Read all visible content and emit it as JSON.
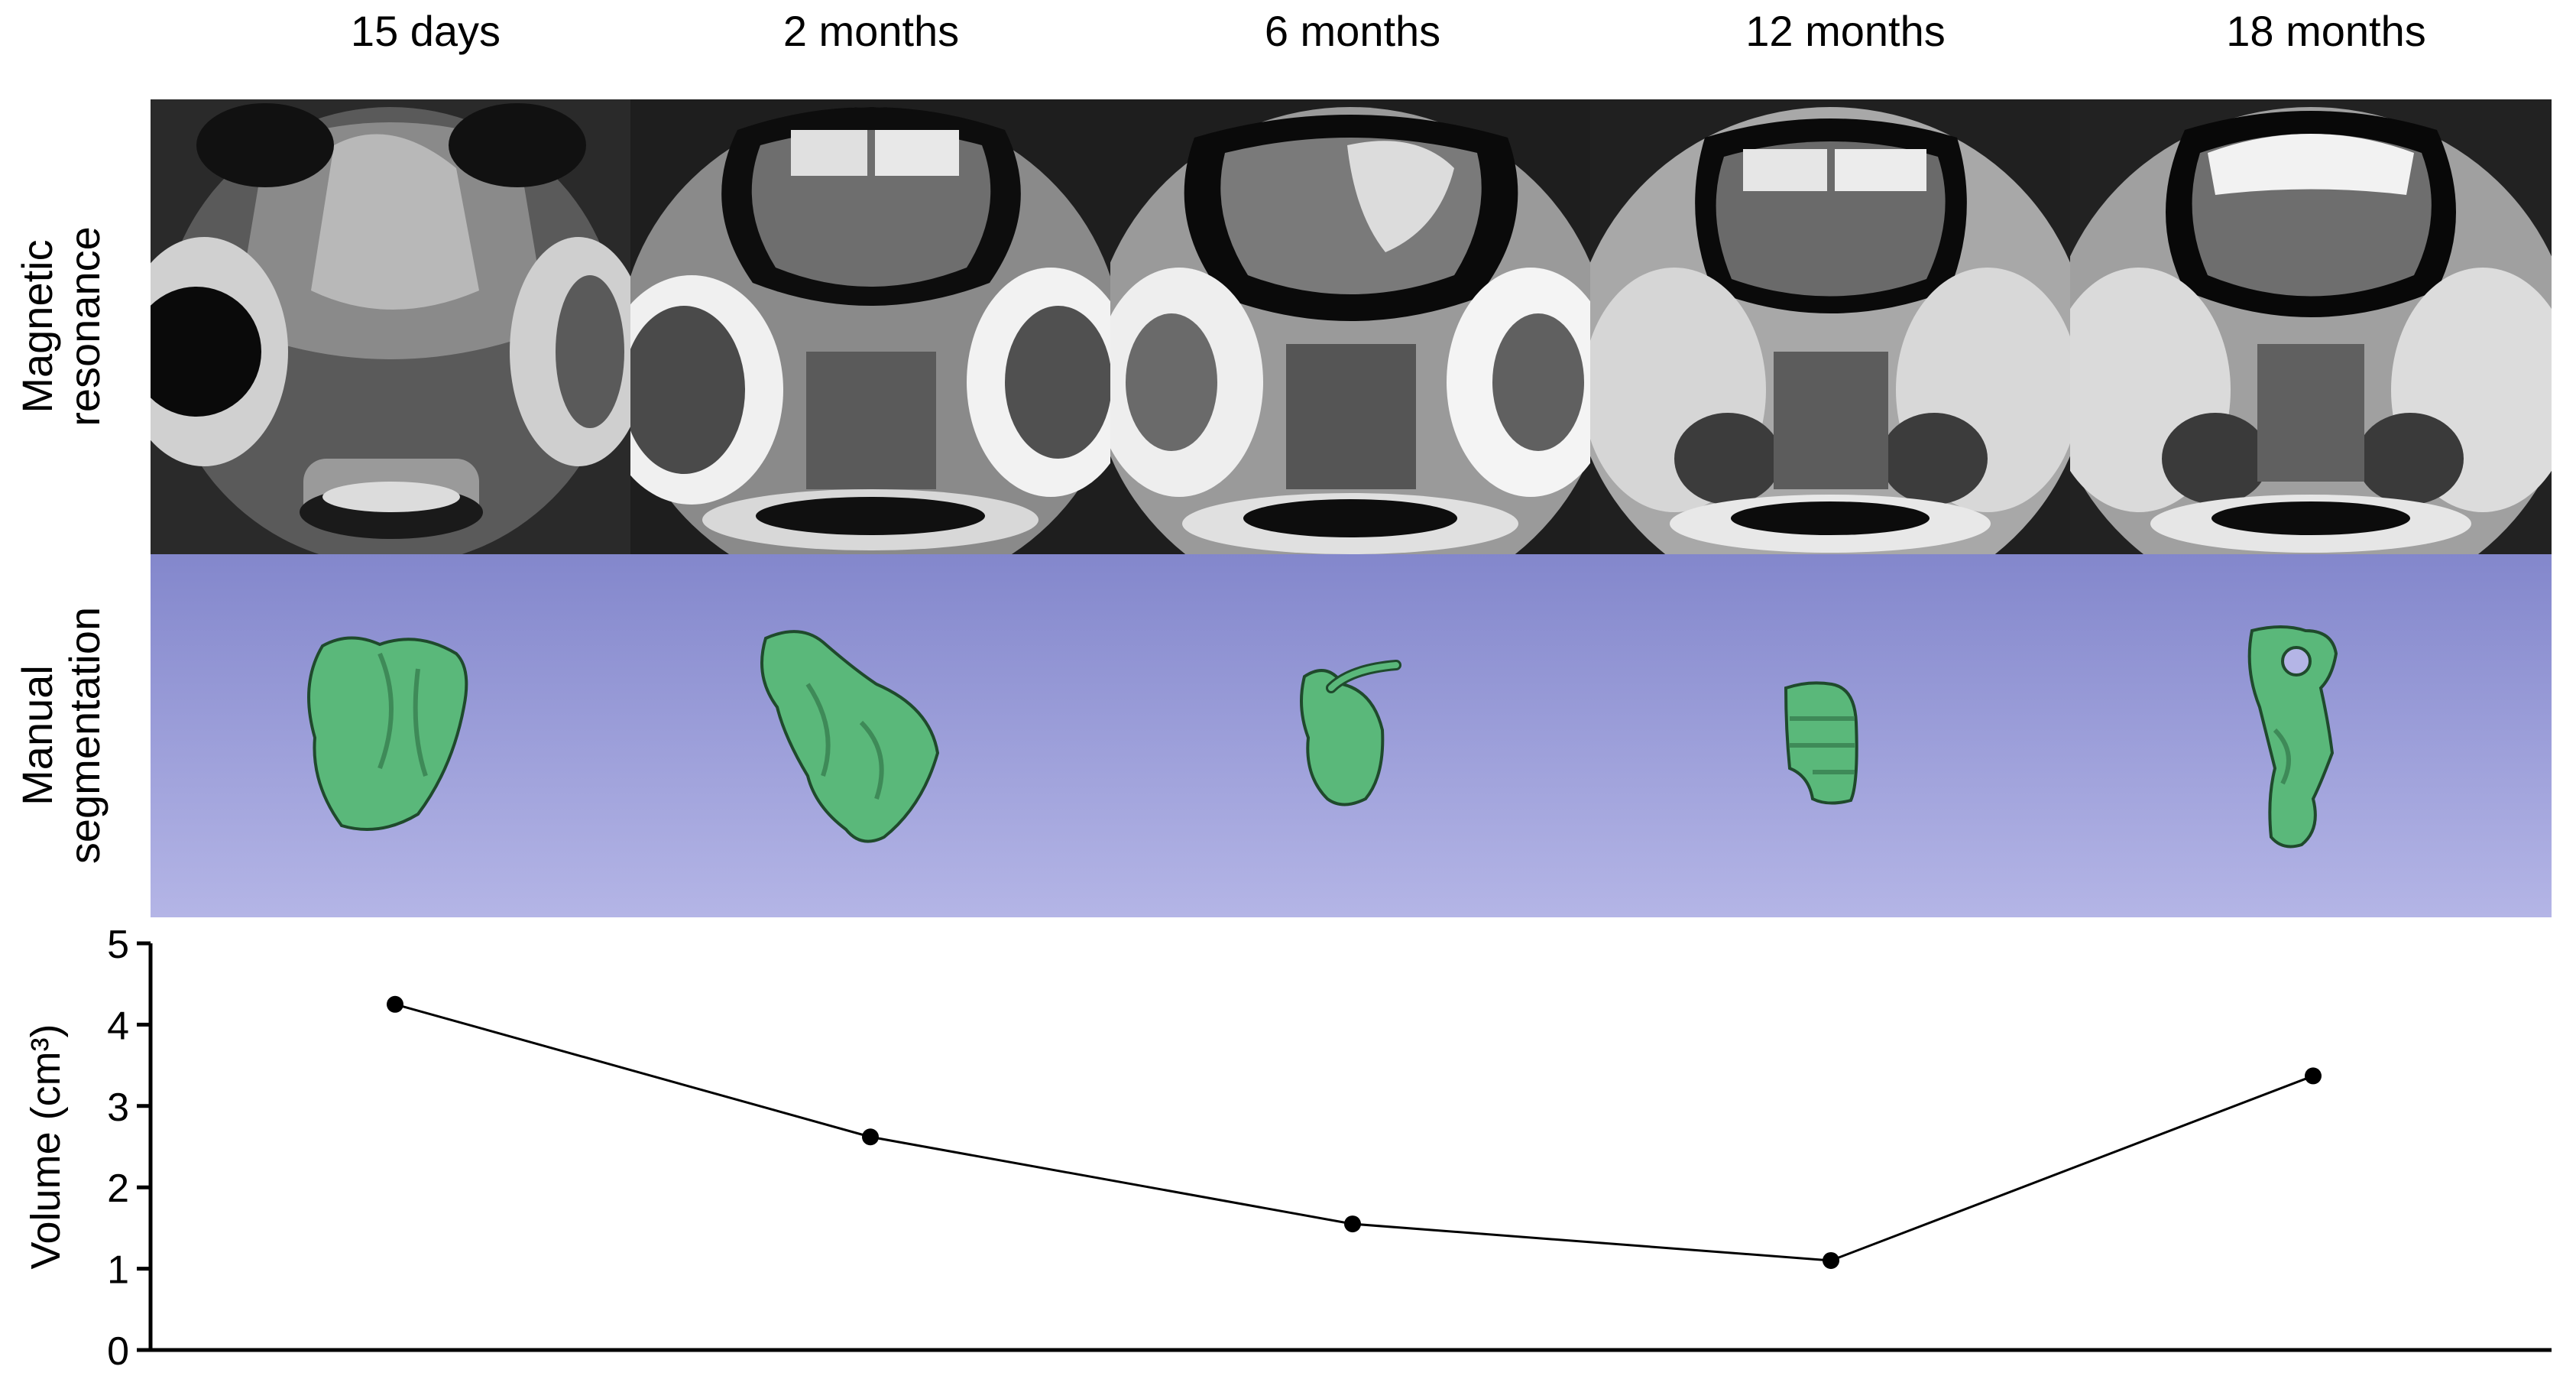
{
  "figure": {
    "timepoints": [
      "15 days",
      "2 months",
      "6 months",
      "12 months",
      "18 months"
    ],
    "row_labels": {
      "mri": [
        "Magnetic",
        "resonance"
      ],
      "segmentation": [
        "Manual",
        "segmentation"
      ]
    },
    "colors": {
      "segmentation_bg_top": "#8387cc",
      "segmentation_bg_bottom": "#b4b5e6",
      "tumor_green": "#5ab87a"
    }
  },
  "chart_data": {
    "type": "line",
    "categories": [
      "15 days",
      "2 months",
      "6 months",
      "12 months",
      "18 months"
    ],
    "series": [
      {
        "values": [
          4.25,
          2.62,
          1.55,
          1.1,
          3.37
        ]
      }
    ],
    "ylabel": "Volume (cm³)",
    "xlabel": "",
    "ylim": [
      0,
      5
    ],
    "yticks": [
      "0",
      "1",
      "2",
      "3",
      "4",
      "5"
    ],
    "grid": false,
    "legend": "none"
  }
}
